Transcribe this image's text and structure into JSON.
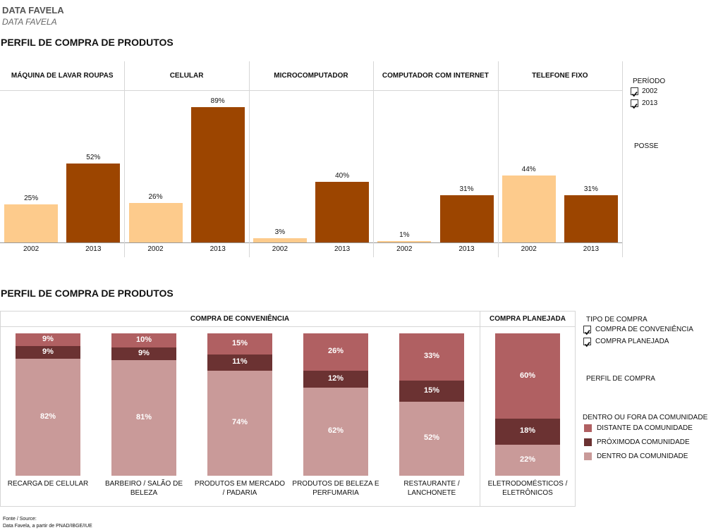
{
  "header": {
    "title": "DATA FAVELA",
    "subtitle": "DATA FAVELA"
  },
  "chart_data": [
    {
      "type": "grouped_bar",
      "title": "PERFIL DE COMPRA DE PRODUTOS",
      "categories": [
        "MÁQUINA DE LAVAR ROUPAS",
        "CELULAR",
        "MICROCOMPUTADOR",
        "COMPUTADOR COM INTERNET",
        "TELEFONE FIXO"
      ],
      "series": [
        {
          "name": "2002",
          "color": "#fdcb8c",
          "values": [
            25,
            26,
            3,
            1,
            44
          ],
          "value_labels": [
            "25%",
            "26%",
            "3%",
            "1%",
            "44%"
          ]
        },
        {
          "name": "2013",
          "color": "#9c4500",
          "values": [
            52,
            89,
            40,
            31,
            31
          ],
          "value_labels": [
            "52%",
            "89%",
            "40%",
            "31%",
            "31%"
          ]
        }
      ],
      "ylim": [
        0,
        100
      ],
      "legend": {
        "title": "PERÍODO",
        "position": "right"
      },
      "measure_label": "POSSE"
    },
    {
      "type": "stacked_bar",
      "title": "PERFIL DE COMPRA DE PRODUTOS",
      "groups": [
        {
          "name": "COMPRA DE CONVENIÊNCIA",
          "categories": [
            "RECARGA DE CELULAR",
            "BARBEIRO / SALÃO DE BELEZA",
            "PRODUTOS EM MERCADO / PADARIA",
            "PRODUTOS DE BELEZA E PERFUMARIA",
            "RESTAURANTE / LANCHONETE"
          ]
        },
        {
          "name": "COMPRA PLANEJADA",
          "categories": [
            "ELETRODOMÉSTICOS / ELETRÔNICOS"
          ]
        }
      ],
      "series": [
        {
          "name": "DISTANTE DA COMUNIDADE",
          "color": "#b06062",
          "values": [
            9,
            10,
            15,
            26,
            33,
            60
          ],
          "value_labels": [
            "9%",
            "10%",
            "15%",
            "26%",
            "33%",
            "60%"
          ]
        },
        {
          "name": "PRÓXIMODA COMUNIDADE",
          "color": "#6b3232",
          "values": [
            9,
            9,
            11,
            12,
            15,
            18
          ],
          "value_labels": [
            "9%",
            "9%",
            "11%",
            "12%",
            "15%",
            "18%"
          ]
        },
        {
          "name": "DENTRO DA COMUNIDADE",
          "color": "#c99a99",
          "values": [
            82,
            81,
            74,
            62,
            52,
            22
          ],
          "value_labels": [
            "82%",
            "81%",
            "74%",
            "62%",
            "52%",
            "22%"
          ]
        }
      ],
      "ylim": [
        0,
        100
      ],
      "filter": {
        "title": "TIPO DE COMPRA"
      },
      "measure_label": "PERFIL DE COMPRA",
      "legend": {
        "title": "DENTRO OU FORA DA COMUNIDADE",
        "position": "right"
      }
    }
  ],
  "footer": {
    "source_label": "Fonte / Source:",
    "source": "Data Favela, a partir de PNAD/IBGE/IUE"
  }
}
